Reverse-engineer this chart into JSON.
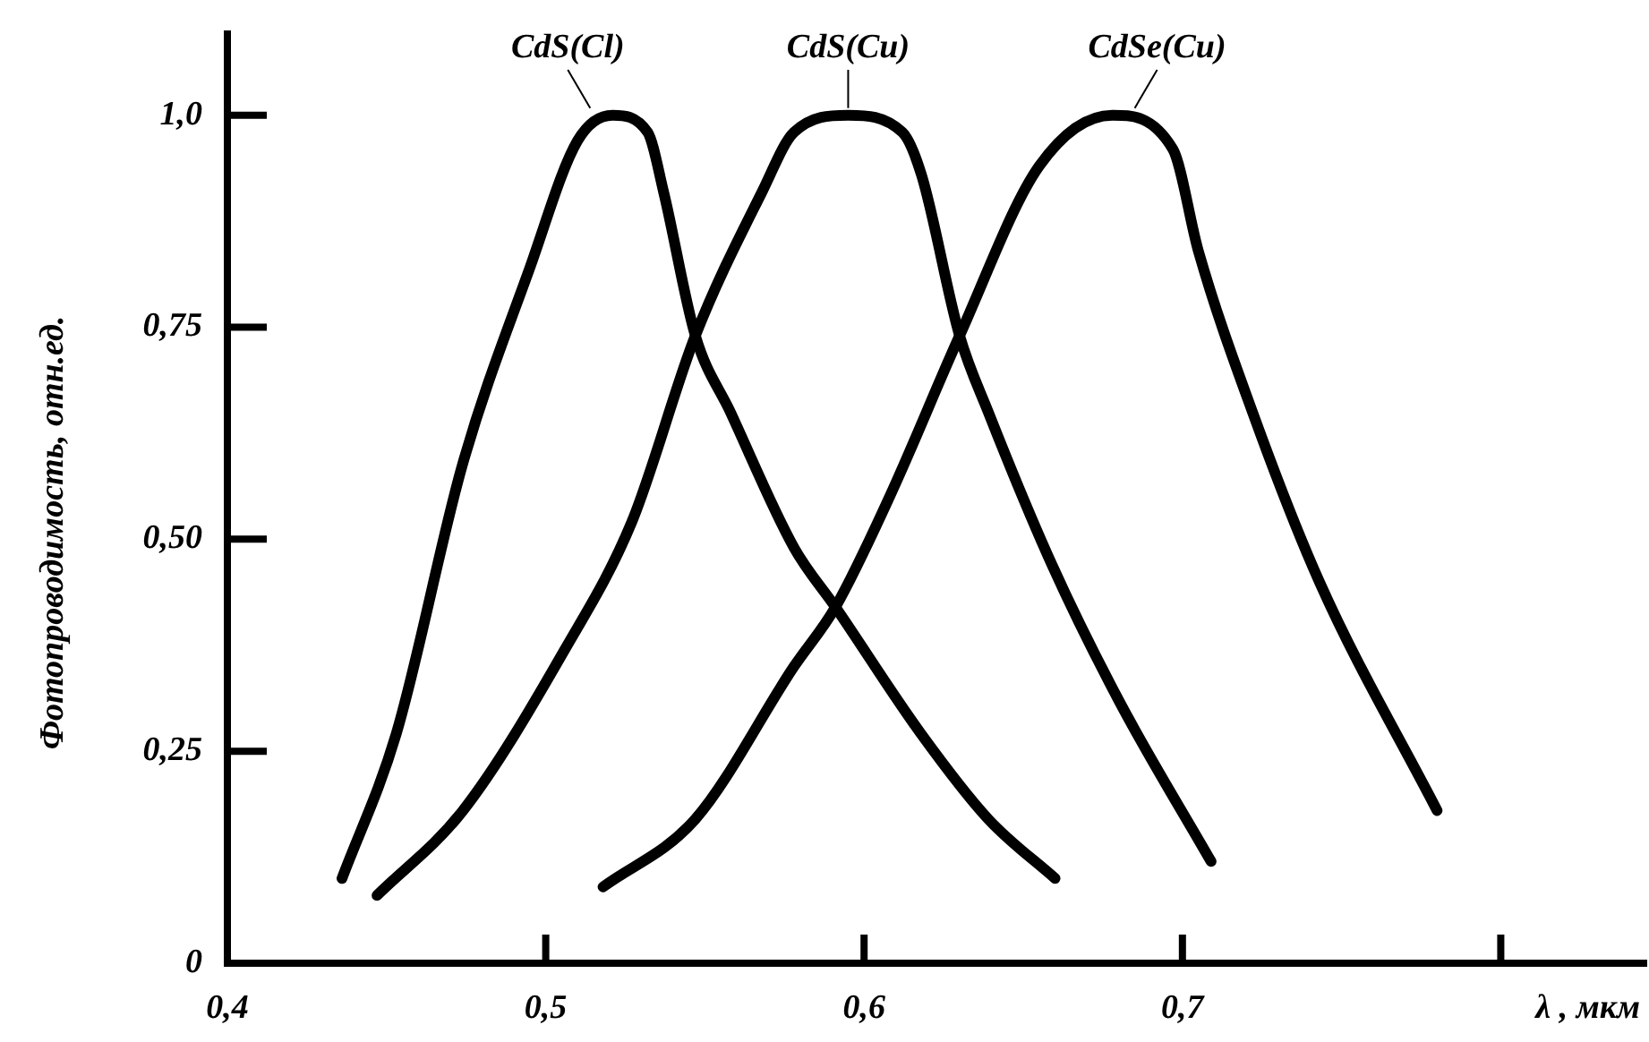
{
  "chart_data": {
    "type": "line",
    "xlabel": "λ , мкм",
    "ylabel": "Фотопроводимость, отн.ед.",
    "xlim": [
      0.4,
      0.846
    ],
    "xticks": [
      {
        "value": 0.4,
        "label": "0,4"
      },
      {
        "value": 0.5,
        "label": "0,5"
      },
      {
        "value": 0.6,
        "label": "0,6"
      },
      {
        "value": 0.7,
        "label": "0,7"
      },
      {
        "value": 0.8,
        "label": null
      }
    ],
    "ylim": [
      0,
      1.1
    ],
    "yticks": [
      {
        "value": 0,
        "label": "0"
      },
      {
        "value": 0.25,
        "label": "0,25"
      },
      {
        "value": 0.5,
        "label": "0,50"
      },
      {
        "value": 0.75,
        "label": "0,75"
      },
      {
        "value": 1,
        "label": "1,0"
      }
    ],
    "grid": false,
    "legend": false,
    "marker": "none",
    "line_style": "solid",
    "series": [
      {
        "name": "CdS(Cl)",
        "color": "#000000",
        "x": [
          0.436,
          0.453,
          0.474,
          0.495,
          0.51,
          0.521,
          0.532,
          0.537,
          0.547,
          0.558,
          0.578,
          0.591,
          0.618,
          0.639,
          0.66
        ],
        "values": [
          0.1,
          0.27,
          0.59,
          0.82,
          0.97,
          1.0,
          0.98,
          0.91,
          0.74,
          0.65,
          0.49,
          0.42,
          0.27,
          0.17,
          0.1
        ]
      },
      {
        "name": "CdS(Cu)",
        "color": "#000000",
        "x": [
          0.447,
          0.474,
          0.506,
          0.527,
          0.547,
          0.568,
          0.578,
          0.595,
          0.612,
          0.618,
          0.63,
          0.639,
          0.659,
          0.68,
          0.709
        ],
        "values": [
          0.08,
          0.18,
          0.37,
          0.52,
          0.74,
          0.91,
          0.98,
          1.0,
          0.98,
          0.93,
          0.74,
          0.65,
          0.47,
          0.31,
          0.12
        ]
      },
      {
        "name": "CdSe(Cu)",
        "color": "#000000",
        "x": [
          0.518,
          0.547,
          0.578,
          0.591,
          0.608,
          0.63,
          0.655,
          0.678,
          0.697,
          0.705,
          0.722,
          0.743,
          0.78
        ],
        "values": [
          0.09,
          0.17,
          0.35,
          0.42,
          0.55,
          0.74,
          0.94,
          1.0,
          0.96,
          0.84,
          0.65,
          0.45,
          0.18
        ]
      }
    ]
  }
}
